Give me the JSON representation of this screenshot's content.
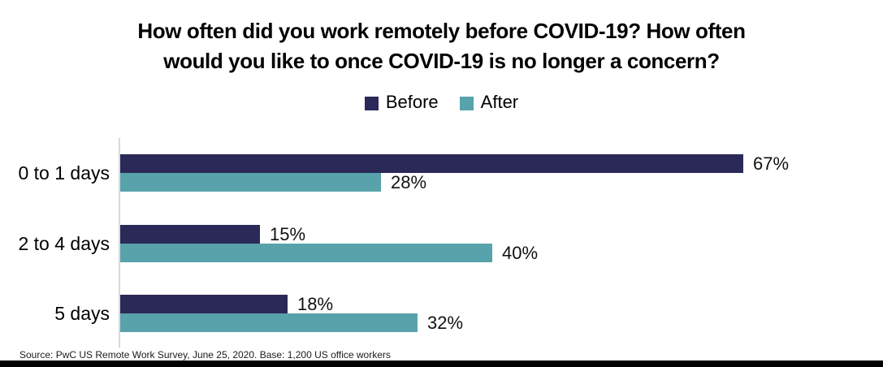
{
  "chart_data": {
    "type": "bar",
    "orientation": "horizontal",
    "title": "How often did you work remotely before COVID-19? How often would you like to once COVID-19 is no longer a concern?",
    "title_lines": [
      "How often did you work remotely before COVID-19? How often",
      "would you like to once COVID-19 is no longer a concern?"
    ],
    "categories": [
      "0 to 1 days",
      "2 to 4 days",
      "5 days"
    ],
    "series": [
      {
        "name": "Before",
        "color": "#2A2957",
        "values": [
          67,
          15,
          18
        ],
        "labels": [
          "67%",
          "15%",
          "18%"
        ]
      },
      {
        "name": "After",
        "color": "#58A3AB",
        "values": [
          28,
          40,
          32
        ],
        "labels": [
          "28%",
          "40%",
          "32%"
        ]
      }
    ],
    "value_unit": "%",
    "xlim": [
      0,
      80
    ],
    "grid": false,
    "legend_position": "top-center",
    "axis_line_color": "#D9D9D9"
  },
  "source_note": "Source: PwC US Remote Work Survey, June 25, 2020. Base: 1,200 US office workers",
  "colors": {
    "before": "#2A2957",
    "after": "#58A3AB",
    "title_text": "#000000",
    "value_text": "#111111",
    "source_text": "#1A1A1A",
    "axis_line": "#D9D9D9",
    "bottom_band": "#000000",
    "background": "#FFFFFF"
  }
}
